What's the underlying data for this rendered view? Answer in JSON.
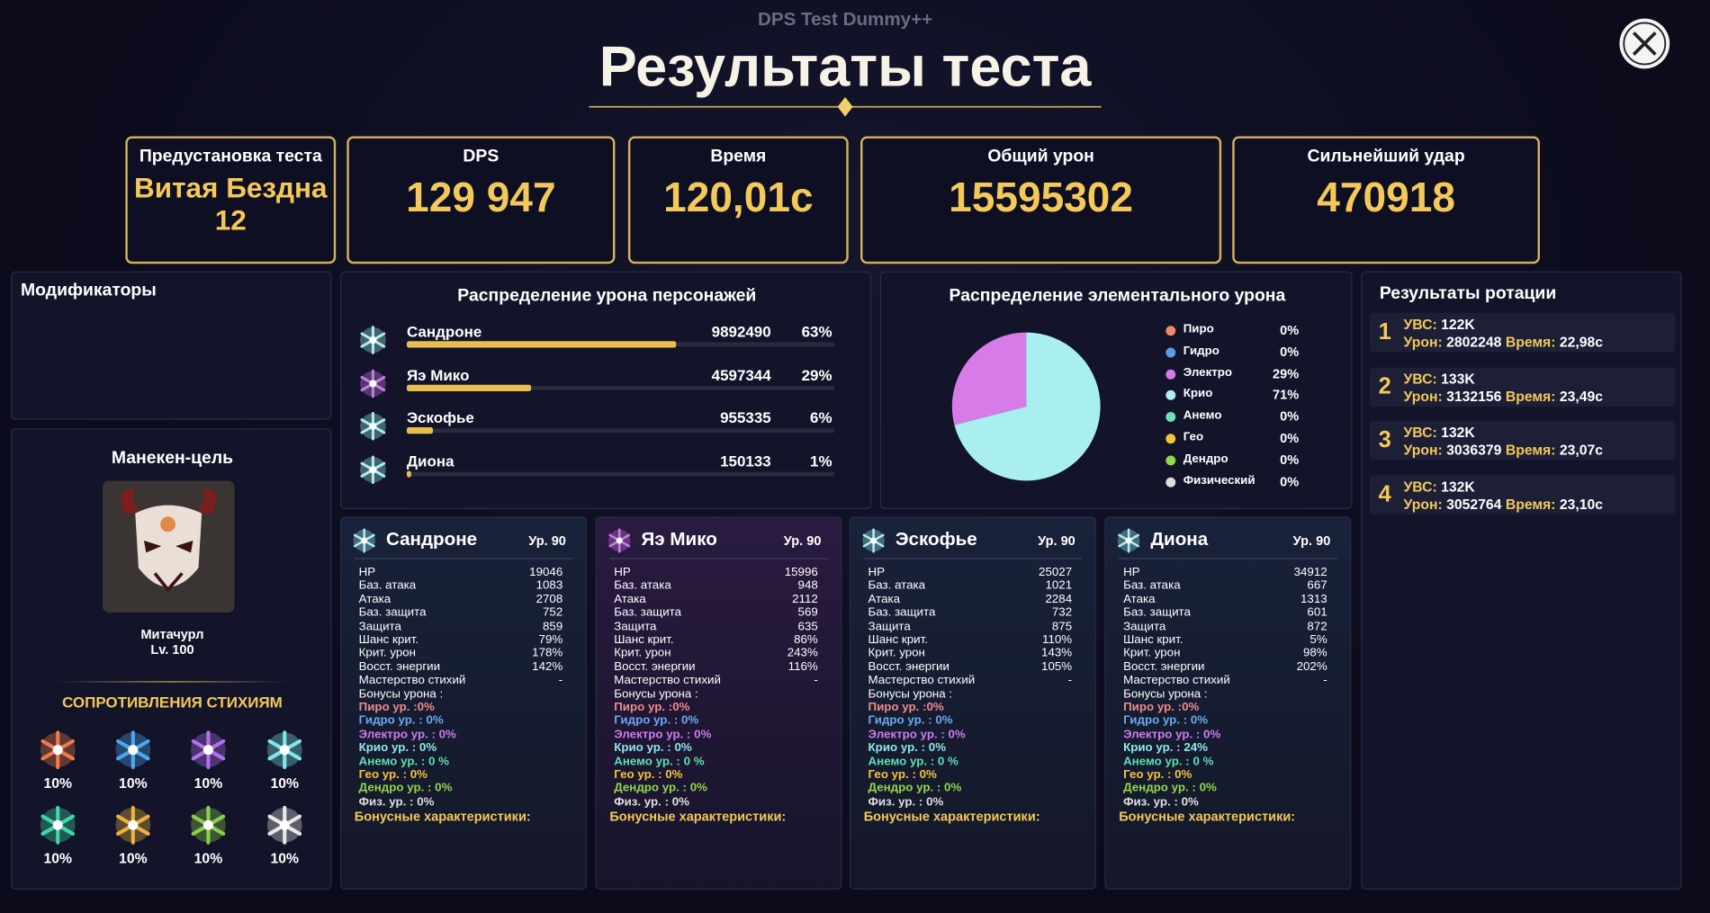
{
  "header": {
    "app_name": "DPS Test Dummy++",
    "title": "Результаты теста"
  },
  "summary": [
    {
      "label": "Предустановка теста",
      "value": "Витая Бездна 12"
    },
    {
      "label": "DPS",
      "value": "129 947"
    },
    {
      "label": "Время",
      "value": "120,01с"
    },
    {
      "label": "Общий урон",
      "value": "15595302"
    },
    {
      "label": "Сильнейший удар",
      "value": "470918"
    }
  ],
  "modifiers": {
    "title": "Модификаторы"
  },
  "target": {
    "title": "Манекен-цель",
    "name": "Митачурл",
    "level": "Lv. 100",
    "resistance_title": "СОПРОТИВЛЕНИЯ СТИХИЯМ",
    "resistances": [
      "10%",
      "10%",
      "10%",
      "10%",
      "10%",
      "10%",
      "10%",
      "10%"
    ]
  },
  "character_damage": {
    "title": "Распределение урона персонажей",
    "rows": [
      {
        "name": "Сандроне",
        "damage": 9892490,
        "percent": 63,
        "percent_label": "63%",
        "color": "#a8eeee"
      },
      {
        "name": "Яэ Мико",
        "damage": 4597344,
        "percent": 29,
        "percent_label": "29%",
        "color": "#c87ae8"
      },
      {
        "name": "Эскофье",
        "damage": 955335,
        "percent": 6,
        "percent_label": "6%",
        "color": "#a8eeee"
      },
      {
        "name": "Диона",
        "damage": 150133,
        "percent": 1,
        "percent_label": "1%",
        "color": "#a8eeee"
      }
    ]
  },
  "elemental_damage": {
    "title": "Распределение элементального урона",
    "type": "pie",
    "elements": [
      {
        "name": "Пиро",
        "color": "#f0896a",
        "value": 0,
        "value_label": "0%"
      },
      {
        "name": "Гидро",
        "color": "#5b9be8",
        "value": 0,
        "value_label": "0%"
      },
      {
        "name": "Электро",
        "color": "#d77be8",
        "value": 29,
        "value_label": "29%"
      },
      {
        "name": "Крио",
        "color": "#a9eff0",
        "value": 71,
        "value_label": "71%"
      },
      {
        "name": "Анемо",
        "color": "#6fe0b8",
        "value": 0,
        "value_label": "0%"
      },
      {
        "name": "Гео",
        "color": "#f2c43e",
        "value": 0,
        "value_label": "0%"
      },
      {
        "name": "Дендро",
        "color": "#8fd84a",
        "value": 0,
        "value_label": "0%"
      },
      {
        "name": "Физический",
        "color": "#dddddd",
        "value": 0,
        "value_label": "0%"
      }
    ]
  },
  "rotation": {
    "title": "Результаты ротации",
    "labels": {
      "ubs": "УВС:",
      "damage": "Урон:",
      "time": "Время:"
    },
    "rows": [
      {
        "index": 1,
        "ubs": "122K",
        "damage": 2802248,
        "time": "22,98с"
      },
      {
        "index": 2,
        "ubs": "133K",
        "damage": 3132156,
        "time": "23,49с"
      },
      {
        "index": 3,
        "ubs": "132K",
        "damage": 3036379,
        "time": "23,07с"
      },
      {
        "index": 4,
        "ubs": "132K",
        "damage": 3052764,
        "time": "23,10с"
      }
    ]
  },
  "characters": {
    "stat_labels": [
      "HP",
      "Баз. атака",
      "Атака",
      "Баз. защита",
      "Защита",
      "Шанс крит.",
      "Крит. урон",
      "Восст. энергии",
      "Мастерство стихий"
    ],
    "bonus_title": "Бонусы урона :",
    "extra_title": "Бонусные характеристики:",
    "cards": [
      {
        "name": "Сандроне",
        "level": "Ур. 90",
        "color": "#a8eeee",
        "stats": [
          19046,
          1083,
          2708,
          752,
          859,
          "79%",
          "178%",
          "142%",
          "-"
        ],
        "bonuses": [
          "Пиро ур. :0%",
          "Гидро ур. : 0%",
          "Электро ур. : 0%",
          "Крио ур. : 0%",
          "Анемо ур. : 0 %",
          "Гео ур. : 0%",
          "Дендро ур. : 0%",
          "Физ. ур. : 0%"
        ]
      },
      {
        "name": "Яэ Мико",
        "level": "Ур. 90",
        "color": "#c87ae8",
        "stats": [
          15996,
          948,
          2112,
          569,
          635,
          "86%",
          "243%",
          "116%",
          "-"
        ],
        "bonuses": [
          "Пиро ур. :0%",
          "Гидро ур. : 0%",
          "Электро ур. : 0%",
          "Крио ур. : 0%",
          "Анемо ур. : 0 %",
          "Гео ур. : 0%",
          "Дендро ур. : 0%",
          "Физ. ур. : 0%"
        ]
      },
      {
        "name": "Эскофье",
        "level": "Ур. 90",
        "color": "#a8eeee",
        "stats": [
          25027,
          1021,
          2284,
          732,
          875,
          "110%",
          "143%",
          "105%",
          "-"
        ],
        "bonuses": [
          "Пиро ур. :0%",
          "Гидро ур. : 0%",
          "Электро ур. : 0%",
          "Крио ур. : 0%",
          "Анемо ур. : 0 %",
          "Гео ур. : 0%",
          "Дендро ур. : 0%",
          "Физ. ур. : 0%"
        ]
      },
      {
        "name": "Диона",
        "level": "Ур. 90",
        "color": "#a8eeee",
        "stats": [
          34912,
          667,
          1313,
          601,
          872,
          "5%",
          "98%",
          "202%",
          "-"
        ],
        "bonuses": [
          "Пиро ур. :0%",
          "Гидро ур. : 0%",
          "Электро ур. : 0%",
          "Крио ур. : 24%",
          "Анемо ур. : 0 %",
          "Гео ур. : 0%",
          "Дендро ур. : 0%",
          "Физ. ур. : 0%"
        ]
      }
    ]
  }
}
